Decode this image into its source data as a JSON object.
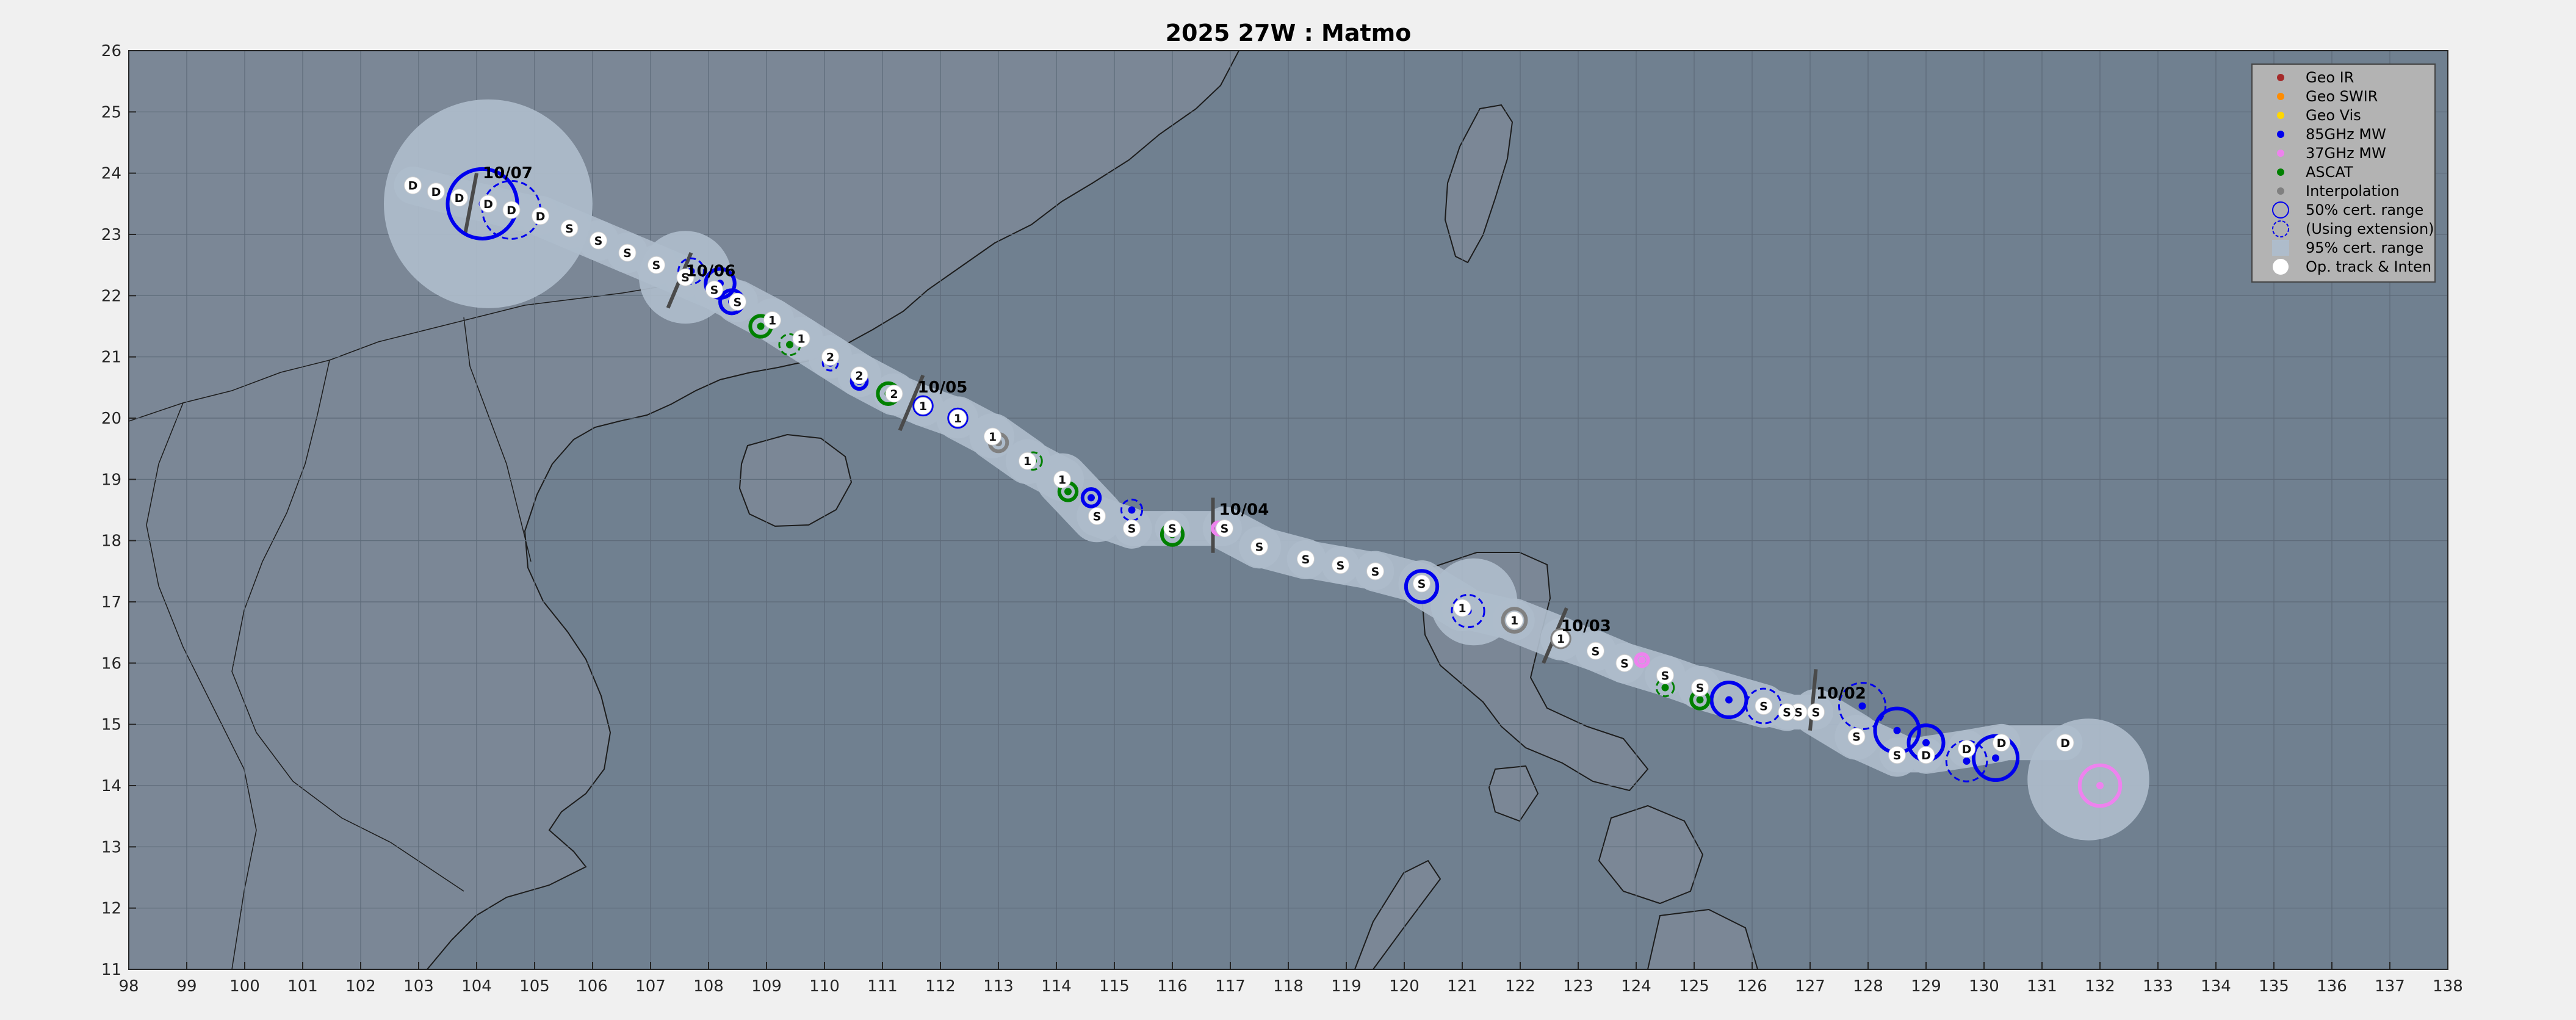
{
  "chart_data": {
    "type": "scatter",
    "title": "2025  27W :  Matmo",
    "xlim": [
      98,
      138
    ],
    "ylim": [
      11,
      26
    ],
    "x_ticks": [
      98,
      99,
      100,
      101,
      102,
      103,
      104,
      105,
      106,
      107,
      108,
      109,
      110,
      111,
      112,
      113,
      114,
      115,
      116,
      117,
      118,
      119,
      120,
      121,
      122,
      123,
      124,
      125,
      126,
      127,
      128,
      129,
      130,
      131,
      132,
      133,
      134,
      135,
      136,
      137,
      138
    ],
    "y_ticks": [
      11,
      12,
      13,
      14,
      15,
      16,
      17,
      18,
      19,
      20,
      21,
      22,
      23,
      24,
      25,
      26
    ],
    "grid": true,
    "legend_position": "top-right",
    "colors": {
      "background": "#708090",
      "land": "#7b8796",
      "coast": "#1c1c1c",
      "envelope": "#aebccb",
      "geo_ir": "#a52a2a",
      "geo_swir": "#ff8c00",
      "geo_vis": "#ffd700",
      "mw85": "#0000ee",
      "mw37": "#ee82ee",
      "ascat": "#008000",
      "interp": "#808080",
      "optrack": "#ffffff"
    },
    "legend": [
      {
        "label": "Geo IR",
        "kind": "dot",
        "color": "#a52a2a"
      },
      {
        "label": "Geo SWIR",
        "kind": "dot",
        "color": "#ff8c00"
      },
      {
        "label": "Geo Vis",
        "kind": "dot",
        "color": "#ffd700"
      },
      {
        "label": "85GHz MW",
        "kind": "dot",
        "color": "#0000ee"
      },
      {
        "label": "37GHz MW",
        "kind": "dot",
        "color": "#ee82ee"
      },
      {
        "label": "ASCAT",
        "kind": "dot",
        "color": "#008000"
      },
      {
        "label": "Interpolation",
        "kind": "dot",
        "color": "#808080"
      },
      {
        "label": "50% cert. range",
        "kind": "circle-solid",
        "color": "#0000ee"
      },
      {
        "label": "(Using extension)",
        "kind": "circle-dashed",
        "color": "#0000ee"
      },
      {
        "label": "95% cert. range",
        "kind": "patch",
        "color": "#aebccb"
      },
      {
        "label": "Op. track & Inten",
        "kind": "big-dot",
        "color": "#ffffff"
      }
    ],
    "date_marks": [
      {
        "label": "10/02",
        "x": 127.0,
        "y": 15.2
      },
      {
        "label": "10/03",
        "x": 122.6,
        "y": 16.3
      },
      {
        "label": "10/04",
        "x": 116.7,
        "y": 18.2
      },
      {
        "label": "10/05",
        "x": 111.5,
        "y": 20.2
      },
      {
        "label": "10/06",
        "x": 107.5,
        "y": 22.1
      },
      {
        "label": "10/07",
        "x": 104.0,
        "y": 23.7
      }
    ],
    "op_track": [
      {
        "x": 131.4,
        "y": 14.7,
        "label": "D"
      },
      {
        "x": 130.3,
        "y": 14.7,
        "label": "D"
      },
      {
        "x": 129.7,
        "y": 14.6,
        "label": "D"
      },
      {
        "x": 129.0,
        "y": 14.5,
        "label": "D"
      },
      {
        "x": 128.5,
        "y": 14.5,
        "label": "S"
      },
      {
        "x": 127.8,
        "y": 14.8,
        "label": "S"
      },
      {
        "x": 127.1,
        "y": 15.2,
        "label": "S"
      },
      {
        "x": 126.8,
        "y": 15.2,
        "label": "S"
      },
      {
        "x": 126.6,
        "y": 15.2,
        "label": "S"
      },
      {
        "x": 126.2,
        "y": 15.3,
        "label": "S"
      },
      {
        "x": 125.1,
        "y": 15.6,
        "label": "S"
      },
      {
        "x": 124.5,
        "y": 15.8,
        "label": "S"
      },
      {
        "x": 123.8,
        "y": 16.0,
        "label": "S"
      },
      {
        "x": 123.3,
        "y": 16.2,
        "label": "S"
      },
      {
        "x": 122.7,
        "y": 16.4,
        "label": "1"
      },
      {
        "x": 121.9,
        "y": 16.7,
        "label": "1"
      },
      {
        "x": 121.0,
        "y": 16.9,
        "label": "1"
      },
      {
        "x": 120.3,
        "y": 17.3,
        "label": "S"
      },
      {
        "x": 119.5,
        "y": 17.5,
        "label": "S"
      },
      {
        "x": 118.9,
        "y": 17.6,
        "label": "S"
      },
      {
        "x": 118.3,
        "y": 17.7,
        "label": "S"
      },
      {
        "x": 117.5,
        "y": 17.9,
        "label": "S"
      },
      {
        "x": 116.9,
        "y": 18.2,
        "label": "S"
      },
      {
        "x": 116.0,
        "y": 18.2,
        "label": "S"
      },
      {
        "x": 115.3,
        "y": 18.2,
        "label": "S"
      },
      {
        "x": 114.7,
        "y": 18.4,
        "label": "S"
      },
      {
        "x": 114.1,
        "y": 19.0,
        "label": "1"
      },
      {
        "x": 113.5,
        "y": 19.3,
        "label": "1"
      },
      {
        "x": 112.9,
        "y": 19.7,
        "label": "1"
      },
      {
        "x": 112.3,
        "y": 20.0,
        "label": "1"
      },
      {
        "x": 111.7,
        "y": 20.2,
        "label": "1"
      },
      {
        "x": 111.2,
        "y": 20.4,
        "label": "2"
      },
      {
        "x": 110.6,
        "y": 20.7,
        "label": "2"
      },
      {
        "x": 110.1,
        "y": 21.0,
        "label": "2"
      },
      {
        "x": 109.6,
        "y": 21.3,
        "label": "1"
      },
      {
        "x": 109.1,
        "y": 21.6,
        "label": "1"
      },
      {
        "x": 108.5,
        "y": 21.9,
        "label": "S"
      },
      {
        "x": 108.1,
        "y": 22.1,
        "label": "S"
      },
      {
        "x": 107.6,
        "y": 22.3,
        "label": "S"
      },
      {
        "x": 107.1,
        "y": 22.5,
        "label": "S"
      },
      {
        "x": 106.6,
        "y": 22.7,
        "label": "S"
      },
      {
        "x": 106.1,
        "y": 22.9,
        "label": "S"
      },
      {
        "x": 105.6,
        "y": 23.1,
        "label": "S"
      },
      {
        "x": 105.1,
        "y": 23.3,
        "label": "D"
      },
      {
        "x": 104.6,
        "y": 23.4,
        "label": "D"
      },
      {
        "x": 104.2,
        "y": 23.5,
        "label": "D"
      },
      {
        "x": 103.7,
        "y": 23.6,
        "label": "D"
      },
      {
        "x": 103.3,
        "y": 23.7,
        "label": "D"
      },
      {
        "x": 102.9,
        "y": 23.8,
        "label": "D"
      }
    ],
    "fixes": [
      {
        "type": "mw37",
        "x": 132.0,
        "y": 14.0,
        "r": 0.35,
        "style": "solid"
      },
      {
        "type": "mw85",
        "x": 130.2,
        "y": 14.45,
        "r": 0.38,
        "style": "solid"
      },
      {
        "type": "mw85",
        "x": 129.7,
        "y": 14.4,
        "r": 0.35,
        "style": "dashed"
      },
      {
        "type": "mw85",
        "x": 129.0,
        "y": 14.7,
        "r": 0.3,
        "style": "solid"
      },
      {
        "type": "mw85",
        "x": 128.5,
        "y": 14.9,
        "r": 0.38,
        "style": "solid"
      },
      {
        "type": "mw85",
        "x": 127.9,
        "y": 15.3,
        "r": 0.4,
        "style": "dashed"
      },
      {
        "type": "mw85",
        "x": 126.2,
        "y": 15.3,
        "r": 0.3,
        "style": "dashed"
      },
      {
        "type": "mw85",
        "x": 125.6,
        "y": 15.4,
        "r": 0.3,
        "style": "solid"
      },
      {
        "type": "ascat",
        "x": 125.1,
        "y": 15.4,
        "r": 0.15,
        "style": "solid"
      },
      {
        "type": "ascat",
        "x": 124.5,
        "y": 15.6,
        "r": 0.15,
        "style": "dashed"
      },
      {
        "type": "mw37",
        "x": 124.1,
        "y": 16.05,
        "r": 0.1,
        "style": "solid"
      },
      {
        "type": "mw37",
        "x": 123.3,
        "y": 16.2,
        "r": 0.1,
        "style": "solid"
      },
      {
        "type": "interp",
        "x": 122.7,
        "y": 16.4,
        "r": 0.15,
        "style": "solid"
      },
      {
        "type": "interp",
        "x": 121.9,
        "y": 16.7,
        "r": 0.2,
        "style": "solid"
      },
      {
        "type": "mw85",
        "x": 121.1,
        "y": 16.85,
        "r": 0.28,
        "style": "dashed"
      },
      {
        "type": "mw85",
        "x": 120.3,
        "y": 17.25,
        "r": 0.27,
        "style": "solid"
      },
      {
        "type": "mw37",
        "x": 117.5,
        "y": 17.9,
        "r": 0.1,
        "style": "solid"
      },
      {
        "type": "mw37",
        "x": 116.8,
        "y": 18.2,
        "r": 0.1,
        "style": "solid"
      },
      {
        "type": "ascat",
        "x": 116.0,
        "y": 18.1,
        "r": 0.18,
        "style": "solid"
      },
      {
        "type": "mw85",
        "x": 115.3,
        "y": 18.5,
        "r": 0.18,
        "style": "dashed"
      },
      {
        "type": "mw85",
        "x": 114.6,
        "y": 18.7,
        "r": 0.15,
        "style": "solid"
      },
      {
        "type": "ascat",
        "x": 114.2,
        "y": 18.8,
        "r": 0.15,
        "style": "solid"
      },
      {
        "type": "ascat",
        "x": 113.6,
        "y": 19.3,
        "r": 0.15,
        "style": "dashed"
      },
      {
        "type": "interp",
        "x": 113.0,
        "y": 19.6,
        "r": 0.15,
        "style": "solid"
      },
      {
        "type": "mw85",
        "x": 112.3,
        "y": 20.0,
        "r": 0.15,
        "style": "solid"
      },
      {
        "type": "mw85",
        "x": 111.7,
        "y": 20.2,
        "r": 0.15,
        "style": "solid"
      },
      {
        "type": "ascat",
        "x": 111.1,
        "y": 20.4,
        "r": 0.18,
        "style": "solid"
      },
      {
        "type": "mw85",
        "x": 110.6,
        "y": 20.6,
        "r": 0.13,
        "style": "solid"
      },
      {
        "type": "mw85",
        "x": 110.1,
        "y": 20.9,
        "r": 0.13,
        "style": "dashed"
      },
      {
        "type": "ascat",
        "x": 109.4,
        "y": 21.2,
        "r": 0.18,
        "style": "dashed"
      },
      {
        "type": "ascat",
        "x": 108.9,
        "y": 21.5,
        "r": 0.18,
        "style": "solid"
      },
      {
        "type": "mw85",
        "x": 108.4,
        "y": 21.9,
        "r": 0.2,
        "style": "solid"
      },
      {
        "type": "mw85",
        "x": 108.2,
        "y": 22.2,
        "r": 0.25,
        "style": "solid"
      },
      {
        "type": "mw85",
        "x": 107.7,
        "y": 22.4,
        "r": 0.22,
        "style": "dashed"
      },
      {
        "type": "mw85",
        "x": 104.6,
        "y": 23.4,
        "r": 0.5,
        "style": "dashed"
      },
      {
        "type": "mw85",
        "x": 104.1,
        "y": 23.5,
        "r": 0.6,
        "style": "solid"
      }
    ],
    "storm_lines": [
      {
        "x1": 127.0,
        "y1": 14.9,
        "x2": 127.1,
        "y2": 15.9
      },
      {
        "x1": 122.4,
        "y1": 16.0,
        "x2": 122.8,
        "y2": 16.9
      },
      {
        "x1": 116.7,
        "y1": 17.8,
        "x2": 116.7,
        "y2": 18.7
      },
      {
        "x1": 111.3,
        "y1": 19.8,
        "x2": 111.7,
        "y2": 20.7
      },
      {
        "x1": 107.3,
        "y1": 21.8,
        "x2": 107.7,
        "y2": 22.7
      },
      {
        "x1": 103.8,
        "y1": 23.0,
        "x2": 104.0,
        "y2": 24.0
      }
    ]
  }
}
